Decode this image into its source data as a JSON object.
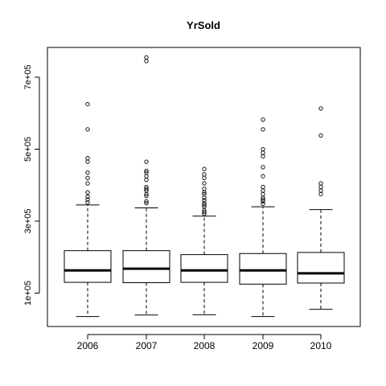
{
  "chart_data": {
    "type": "boxplot",
    "title": "YrSold",
    "xlabel": "",
    "ylabel": "",
    "categories": [
      "2006",
      "2007",
      "2008",
      "2009",
      "2010"
    ],
    "ylim": [
      0,
      780000
    ],
    "y_ticks": [
      100000,
      300000,
      500000,
      700000
    ],
    "y_tick_labels": [
      "1e+05",
      "3e+05",
      "5e+05",
      "7e+05"
    ],
    "grid": false,
    "boxes": [
      {
        "category": "2006",
        "whisker_low": 35000,
        "q1": 130000,
        "median": 163000,
        "q3": 218000,
        "whisker_high": 345000,
        "outliers": [
          352000,
          360000,
          368000,
          380000,
          405000,
          420000,
          435000,
          465000,
          475000,
          555000,
          625000
        ]
      },
      {
        "category": "2007",
        "whisker_low": 39000,
        "q1": 129000,
        "median": 168000,
        "q3": 218000,
        "whisker_high": 337000,
        "outliers": [
          350000,
          355000,
          370000,
          375000,
          385000,
          390000,
          395000,
          415000,
          425000,
          435000,
          440000,
          465000,
          745000,
          755000
        ]
      },
      {
        "category": "2008",
        "whisker_low": 40000,
        "q1": 130000,
        "median": 163000,
        "q3": 207000,
        "whisker_high": 314000,
        "outliers": [
          320000,
          325000,
          330000,
          340000,
          345000,
          350000,
          358000,
          365000,
          375000,
          380000,
          390000,
          405000,
          420000,
          430000,
          445000
        ]
      },
      {
        "category": "2009",
        "whisker_low": 35000,
        "q1": 125000,
        "median": 163000,
        "q3": 210000,
        "whisker_high": 340000,
        "outliers": [
          348000,
          355000,
          360000,
          365000,
          375000,
          385000,
          395000,
          425000,
          450000,
          480000,
          490000,
          500000,
          555000,
          582000
        ]
      },
      {
        "category": "2010",
        "whisker_low": 55000,
        "q1": 128000,
        "median": 155000,
        "q3": 213000,
        "whisker_high": 332000,
        "outliers": [
          375000,
          385000,
          395000,
          405000,
          538000,
          613000
        ]
      }
    ]
  }
}
